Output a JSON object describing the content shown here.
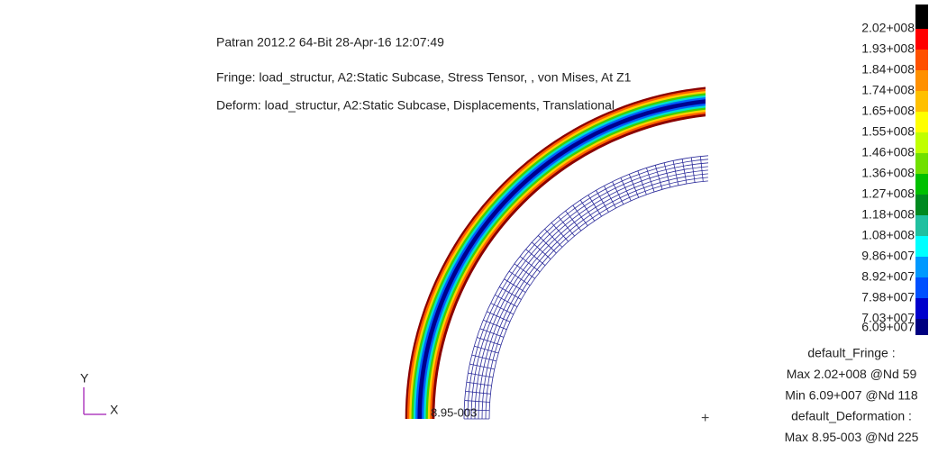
{
  "header": {
    "title": "Patran 2012.2 64-Bit 28-Apr-16 12:07:49",
    "fringe": "Fringe: load_structur, A2:Static Subcase, Stress Tensor, , von Mises, At Z1",
    "deform": "Deform: load_structur, A2:Static Subcase, Displacements, Translational"
  },
  "legend": {
    "labels": [
      "2.02+008",
      "1.93+008",
      "1.84+008",
      "1.74+008",
      "1.65+008",
      "1.55+008",
      "1.46+008",
      "1.36+008",
      "1.27+008",
      "1.18+008",
      "1.08+008",
      "9.86+007",
      "8.92+007",
      "7.98+007",
      "7.03+007",
      "6.09+007"
    ],
    "colors": [
      "#000000",
      "#ff0000",
      "#ff5000",
      "#ff9000",
      "#ffc000",
      "#ffff00",
      "#c0ff00",
      "#70e000",
      "#00c000",
      "#008a20",
      "#20c0a0",
      "#00ffff",
      "#0099ff",
      "#0050ff",
      "#0000cc",
      "#000080"
    ]
  },
  "summary": [
    "default_Fringe :",
    "Max 2.02+008 @Nd 59",
    "Min 6.09+007 @Nd 118",
    "default_Deformation :",
    "Max 8.95-003 @Nd 225"
  ],
  "axes": {
    "y": "Y",
    "x": "X"
  },
  "marker_label": "8.95-003"
}
